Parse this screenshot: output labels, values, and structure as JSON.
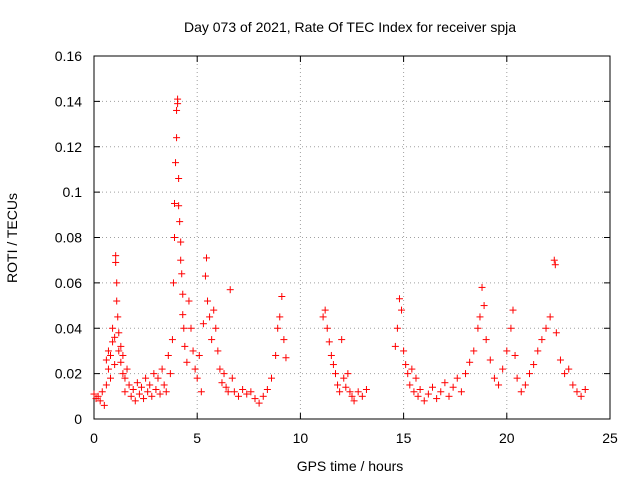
{
  "chart_data": {
    "type": "scatter",
    "title": "Day 073 of 2021, Rate Of TEC Index for receiver spja",
    "xlabel": "GPS time / hours",
    "ylabel": "ROTI / TECUs",
    "xlim": [
      0,
      25
    ],
    "ylim": [
      0,
      0.16
    ],
    "x_ticks": [
      0,
      5,
      10,
      15,
      20,
      25
    ],
    "x_tick_labels": [
      "0",
      "5",
      "10",
      "15",
      "20",
      "25"
    ],
    "y_ticks": [
      0,
      0.02,
      0.04,
      0.06,
      0.08,
      0.1,
      0.12,
      0.14,
      0.16
    ],
    "y_tick_labels": [
      "0",
      "0.02",
      "0.04",
      "0.06",
      "0.08",
      "0.1",
      "0.12",
      "0.14",
      "0.16"
    ],
    "grid": true,
    "marker": "+",
    "color": "#ff0000",
    "series": [
      {
        "name": "ROTI",
        "points": [
          [
            0.0,
            0.011
          ],
          [
            0.1,
            0.009
          ],
          [
            0.2,
            0.01
          ],
          [
            0.3,
            0.008
          ],
          [
            0.4,
            0.012
          ],
          [
            0.5,
            0.006
          ],
          [
            0.6,
            0.015
          ],
          [
            0.6,
            0.026
          ],
          [
            0.7,
            0.022
          ],
          [
            0.7,
            0.03
          ],
          [
            0.8,
            0.018
          ],
          [
            0.8,
            0.028
          ],
          [
            0.9,
            0.034
          ],
          [
            0.9,
            0.04
          ],
          [
            1.0,
            0.024
          ],
          [
            1.0,
            0.036
          ],
          [
            1.05,
            0.072
          ],
          [
            1.05,
            0.069
          ],
          [
            1.1,
            0.06
          ],
          [
            1.1,
            0.052
          ],
          [
            1.15,
            0.045
          ],
          [
            1.2,
            0.038
          ],
          [
            1.2,
            0.03
          ],
          [
            1.3,
            0.032
          ],
          [
            1.3,
            0.025
          ],
          [
            1.4,
            0.028
          ],
          [
            1.4,
            0.02
          ],
          [
            1.5,
            0.018
          ],
          [
            1.5,
            0.012
          ],
          [
            1.6,
            0.022
          ],
          [
            1.7,
            0.015
          ],
          [
            1.8,
            0.01
          ],
          [
            1.9,
            0.013
          ],
          [
            2.0,
            0.008
          ],
          [
            2.1,
            0.016
          ],
          [
            2.2,
            0.011
          ],
          [
            2.3,
            0.014
          ],
          [
            2.4,
            0.009
          ],
          [
            2.5,
            0.018
          ],
          [
            2.6,
            0.012
          ],
          [
            2.7,
            0.015
          ],
          [
            2.8,
            0.01
          ],
          [
            2.9,
            0.02
          ],
          [
            3.0,
            0.013
          ],
          [
            3.1,
            0.018
          ],
          [
            3.2,
            0.011
          ],
          [
            3.3,
            0.022
          ],
          [
            3.4,
            0.015
          ],
          [
            3.5,
            0.012
          ],
          [
            3.6,
            0.028
          ],
          [
            3.7,
            0.02
          ],
          [
            3.8,
            0.035
          ],
          [
            3.85,
            0.06
          ],
          [
            3.9,
            0.095
          ],
          [
            3.9,
            0.08
          ],
          [
            3.95,
            0.113
          ],
          [
            4.0,
            0.124
          ],
          [
            4.0,
            0.136
          ],
          [
            4.05,
            0.141
          ],
          [
            4.05,
            0.139
          ],
          [
            4.1,
            0.106
          ],
          [
            4.1,
            0.094
          ],
          [
            4.15,
            0.087
          ],
          [
            4.2,
            0.078
          ],
          [
            4.2,
            0.07
          ],
          [
            4.25,
            0.064
          ],
          [
            4.3,
            0.055
          ],
          [
            4.3,
            0.046
          ],
          [
            4.35,
            0.04
          ],
          [
            4.4,
            0.032
          ],
          [
            4.5,
            0.025
          ],
          [
            4.6,
            0.052
          ],
          [
            4.7,
            0.04
          ],
          [
            4.8,
            0.03
          ],
          [
            4.9,
            0.022
          ],
          [
            5.0,
            0.018
          ],
          [
            5.1,
            0.028
          ],
          [
            5.2,
            0.012
          ],
          [
            5.3,
            0.042
          ],
          [
            5.4,
            0.063
          ],
          [
            5.45,
            0.071
          ],
          [
            5.5,
            0.052
          ],
          [
            5.6,
            0.045
          ],
          [
            5.7,
            0.035
          ],
          [
            5.8,
            0.048
          ],
          [
            5.9,
            0.04
          ],
          [
            6.0,
            0.03
          ],
          [
            6.1,
            0.022
          ],
          [
            6.2,
            0.016
          ],
          [
            6.3,
            0.02
          ],
          [
            6.4,
            0.014
          ],
          [
            6.5,
            0.012
          ],
          [
            6.6,
            0.057
          ],
          [
            6.7,
            0.018
          ],
          [
            6.8,
            0.012
          ],
          [
            7.0,
            0.01
          ],
          [
            7.2,
            0.013
          ],
          [
            7.4,
            0.011
          ],
          [
            7.6,
            0.012
          ],
          [
            7.8,
            0.009
          ],
          [
            8.0,
            0.007
          ],
          [
            8.2,
            0.01
          ],
          [
            8.4,
            0.013
          ],
          [
            8.6,
            0.018
          ],
          [
            8.8,
            0.028
          ],
          [
            8.9,
            0.04
          ],
          [
            9.0,
            0.045
          ],
          [
            9.1,
            0.054
          ],
          [
            9.2,
            0.035
          ],
          [
            9.3,
            0.027
          ],
          [
            11.1,
            0.045
          ],
          [
            11.2,
            0.048
          ],
          [
            11.3,
            0.04
          ],
          [
            11.4,
            0.034
          ],
          [
            11.5,
            0.028
          ],
          [
            11.6,
            0.024
          ],
          [
            11.7,
            0.02
          ],
          [
            11.8,
            0.015
          ],
          [
            11.9,
            0.012
          ],
          [
            12.0,
            0.035
          ],
          [
            12.1,
            0.018
          ],
          [
            12.2,
            0.014
          ],
          [
            12.3,
            0.02
          ],
          [
            12.4,
            0.012
          ],
          [
            12.5,
            0.01
          ],
          [
            12.6,
            0.008
          ],
          [
            12.8,
            0.012
          ],
          [
            13.0,
            0.01
          ],
          [
            13.2,
            0.013
          ],
          [
            14.6,
            0.032
          ],
          [
            14.7,
            0.04
          ],
          [
            14.8,
            0.053
          ],
          [
            14.9,
            0.048
          ],
          [
            15.0,
            0.03
          ],
          [
            15.1,
            0.024
          ],
          [
            15.2,
            0.02
          ],
          [
            15.3,
            0.015
          ],
          [
            15.4,
            0.022
          ],
          [
            15.5,
            0.012
          ],
          [
            15.6,
            0.018
          ],
          [
            15.7,
            0.01
          ],
          [
            15.8,
            0.013
          ],
          [
            16.0,
            0.008
          ],
          [
            16.2,
            0.011
          ],
          [
            16.4,
            0.014
          ],
          [
            16.6,
            0.009
          ],
          [
            16.8,
            0.012
          ],
          [
            17.0,
            0.016
          ],
          [
            17.2,
            0.01
          ],
          [
            17.4,
            0.014
          ],
          [
            17.6,
            0.018
          ],
          [
            17.8,
            0.012
          ],
          [
            18.0,
            0.02
          ],
          [
            18.2,
            0.025
          ],
          [
            18.4,
            0.03
          ],
          [
            18.6,
            0.04
          ],
          [
            18.7,
            0.045
          ],
          [
            18.8,
            0.058
          ],
          [
            18.9,
            0.05
          ],
          [
            19.0,
            0.035
          ],
          [
            19.2,
            0.026
          ],
          [
            19.4,
            0.018
          ],
          [
            19.6,
            0.015
          ],
          [
            19.8,
            0.022
          ],
          [
            20.0,
            0.03
          ],
          [
            20.2,
            0.04
          ],
          [
            20.3,
            0.048
          ],
          [
            20.4,
            0.028
          ],
          [
            20.5,
            0.018
          ],
          [
            20.7,
            0.012
          ],
          [
            20.9,
            0.015
          ],
          [
            21.1,
            0.02
          ],
          [
            21.3,
            0.024
          ],
          [
            21.5,
            0.03
          ],
          [
            21.7,
            0.035
          ],
          [
            21.9,
            0.04
          ],
          [
            22.1,
            0.045
          ],
          [
            22.3,
            0.07
          ],
          [
            22.35,
            0.068
          ],
          [
            22.4,
            0.038
          ],
          [
            22.6,
            0.026
          ],
          [
            22.8,
            0.02
          ],
          [
            23.0,
            0.022
          ],
          [
            23.2,
            0.015
          ],
          [
            23.4,
            0.012
          ],
          [
            23.6,
            0.01
          ],
          [
            23.8,
            0.013
          ]
        ]
      }
    ]
  }
}
